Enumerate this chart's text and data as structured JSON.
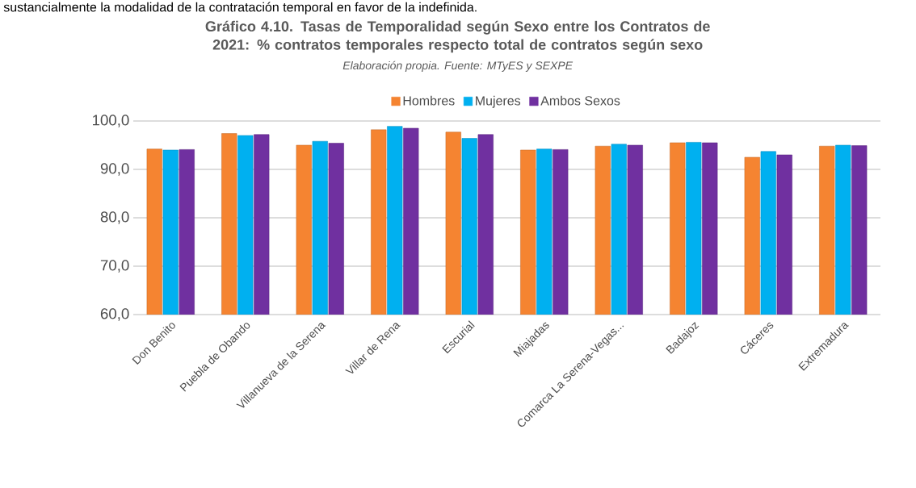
{
  "chart_data": {
    "type": "bar",
    "title": "Gráfico 4.10. Tasas de Temporalidad según Sexo entre los Contratos de 2021: % contratos temporales respecto total de contratos según sexo",
    "subtitle": "Elaboración propia. Fuente: MTyES y SEXPE",
    "annotations": [
      "sustancialmente la modalidad de la contratación temporal en favor de la indefinida."
    ],
    "categories": [
      "Don Benito",
      "Puebla de Obando",
      "Villanueva de la Serena",
      "Villar de Rena",
      "Escurial",
      "Miajadas",
      "Comarca La Serena-Vegas...",
      "Badajoz",
      "Cáceres",
      "Extremadura"
    ],
    "series": [
      {
        "name": "Hombres",
        "color": "#f58431",
        "values": [
          94.2,
          97.4,
          95.0,
          98.2,
          97.7,
          94.0,
          94.8,
          95.5,
          92.5,
          94.8
        ]
      },
      {
        "name": "Mujeres",
        "color": "#00b0f0",
        "values": [
          94.0,
          97.0,
          95.8,
          98.9,
          96.4,
          94.2,
          95.2,
          95.6,
          93.7,
          95.0
        ]
      },
      {
        "name": "Ambos Sexos",
        "color": "#7030a0",
        "values": [
          94.1,
          97.2,
          95.4,
          98.5,
          97.2,
          94.1,
          95.0,
          95.5,
          93.0,
          94.9
        ]
      }
    ],
    "ylim": [
      60,
      100
    ],
    "yticks": [
      {
        "value": 60,
        "label": "60,0"
      },
      {
        "value": 70,
        "label": "70,0"
      },
      {
        "value": 80,
        "label": "80,0"
      },
      {
        "value": 90,
        "label": "90,0"
      },
      {
        "value": 100,
        "label": "100,0"
      }
    ],
    "grid": "y",
    "legend": "top"
  }
}
